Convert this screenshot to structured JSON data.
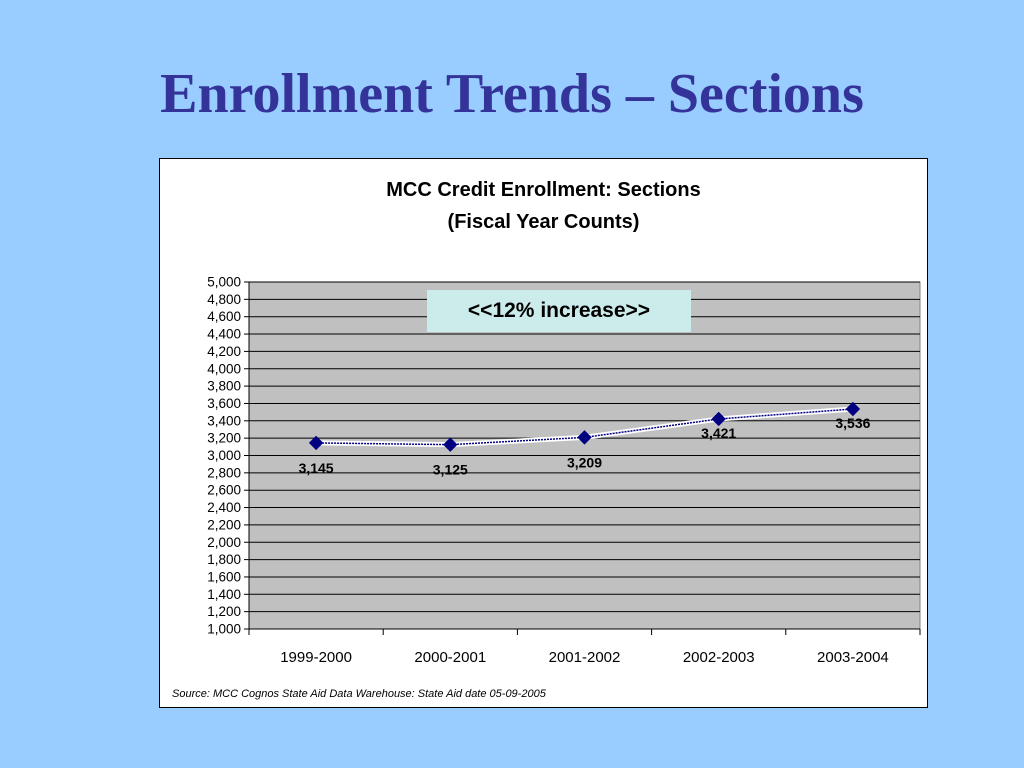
{
  "slide": {
    "title": "Enrollment Trends – Sections",
    "background_color": "#99CCFF",
    "title_color": "#333399"
  },
  "chart_data": {
    "type": "line",
    "title": "MCC Credit Enrollment: Sections",
    "subtitle": "(Fiscal Year Counts)",
    "categories": [
      "1999-2000",
      "2000-2001",
      "2001-2002",
      "2002-2003",
      "2003-2004"
    ],
    "values": [
      3145,
      3125,
      3209,
      3421,
      3536
    ],
    "data_labels": [
      "3,145",
      "3,125",
      "3,209",
      "3,421",
      "3,536"
    ],
    "ylim": [
      1000,
      5000
    ],
    "yticks": [
      1000,
      1200,
      1400,
      1600,
      1800,
      2000,
      2200,
      2400,
      2600,
      2800,
      3000,
      3200,
      3400,
      3600,
      3800,
      4000,
      4200,
      4400,
      4600,
      4800,
      5000
    ],
    "ytick_labels": [
      "1,000",
      "1,200",
      "1,400",
      "1,600",
      "1,800",
      "2,000",
      "2,200",
      "2,400",
      "2,600",
      "2,800",
      "3,000",
      "3,200",
      "3,400",
      "3,600",
      "3,800",
      "4,000",
      "4,200",
      "4,400",
      "4,600",
      "4,800",
      "5,000"
    ],
    "xlabel": "",
    "ylabel": "",
    "grid": true,
    "plot_background": "#C0C0C0",
    "series_color": "#000080",
    "annotation": "<<12% increase>>",
    "annotation_background": "#CCECEC",
    "source": "Source: MCC Cognos State Aid Data Warehouse: State Aid date 05-09-2005"
  }
}
